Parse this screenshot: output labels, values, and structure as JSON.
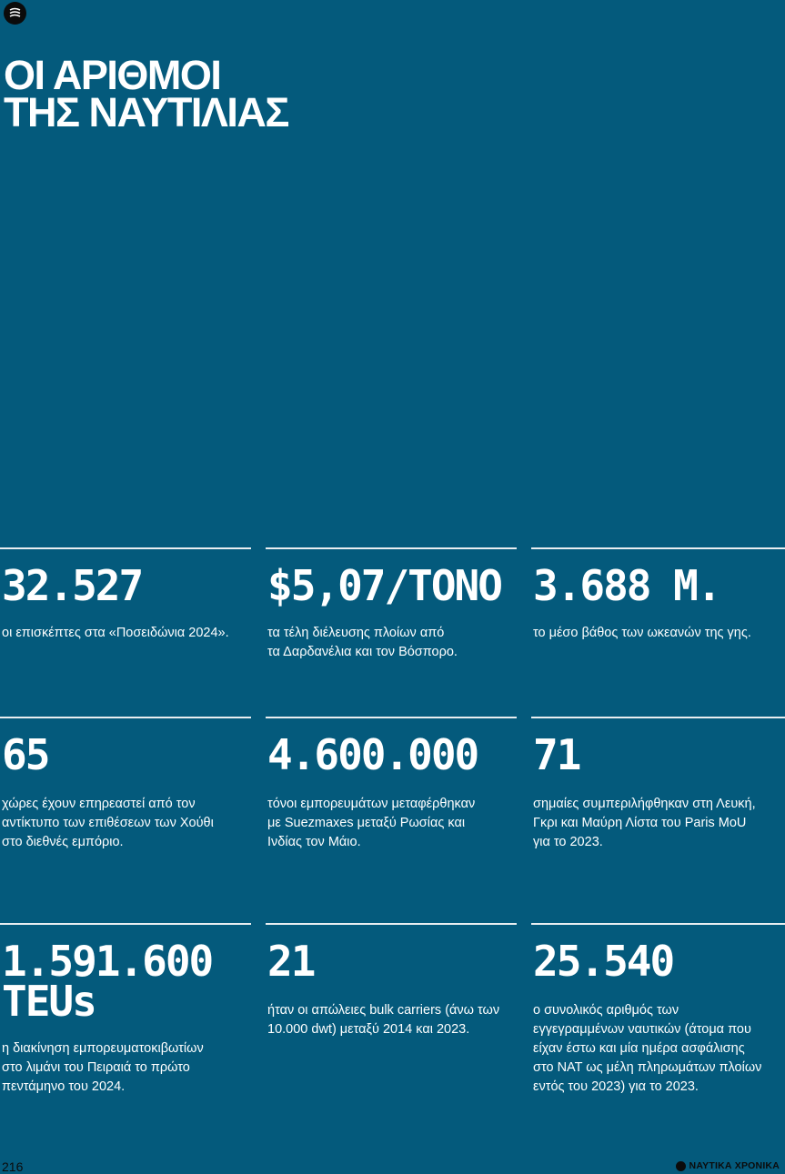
{
  "header": {
    "title_line1": "ΟΙ ΑΡΙΘΜΟΙ",
    "title_line2": "ΤΗΣ ΝΑΥΤΙΛΙΑΣ",
    "logo_icon": "wave-logo-icon"
  },
  "stats": [
    {
      "value": "32.527",
      "desc_lines": [
        "οι επισκέπτες στα «Ποσειδώνια 2024»."
      ]
    },
    {
      "value": "$5,07/ΤΟΝΟ",
      "desc_lines": [
        "τα τέλη διέλευσης πλοίων από",
        "τα Δαρδανέλια και τον Βόσπορο."
      ]
    },
    {
      "value": "3.688 Μ.",
      "desc_lines": [
        "το μέσο βάθος των ωκεανών της γης."
      ]
    },
    {
      "value": "65",
      "desc_lines": [
        "χώρες έχουν επηρεαστεί από τον",
        "αντίκτυπο των επιθέσεων των Χούθι",
        "στο διεθνές εμπόριο."
      ]
    },
    {
      "value": "4.600.000",
      "desc_lines": [
        "τόνοι εμπορευμάτων μεταφέρθηκαν",
        "με Suezmaxes μεταξύ Ρωσίας και",
        "Ινδίας τον Μάιο."
      ]
    },
    {
      "value": "71",
      "desc_lines": [
        "σημαίες συμπεριλήφθηκαν στη Λευκή,",
        "Γκρι και Μαύρη Λίστα του Paris MoU",
        "για το 2023."
      ]
    },
    {
      "value_lines": [
        "1.591.600",
        "TEUs"
      ],
      "desc_lines": [
        "η διακίνηση εμπορευματοκιβωτίων",
        "στο λιμάνι του Πειραιά το πρώτο",
        "πεντάμηνο του 2024."
      ]
    },
    {
      "value": "21",
      "desc_lines": [
        "ήταν οι απώλειες bulk carriers (άνω των",
        "10.000 dwt) μεταξύ 2014 και 2023."
      ]
    },
    {
      "value": "25.540",
      "desc_lines": [
        "ο συνολικός αριθμός των",
        "εγγεγραμμένων ναυτικών (άτομα που",
        "είχαν έστω και μία ημέρα ασφάλισης",
        "στο ΝΑΤ ως μέλη πληρωμάτων πλοίων",
        "εντός του 2023) για το 2023."
      ]
    }
  ],
  "footer": {
    "page_number": "216",
    "brand": "ΝΑΥΤΙΚΑ ΧΡΟΝΙΚΑ",
    "brand_icon": "brand-logo-icon"
  },
  "colors": {
    "background": "#045a7c",
    "text": "#ffffff",
    "rule": "#e9eef1",
    "footer_text": "#0b0b0b"
  }
}
